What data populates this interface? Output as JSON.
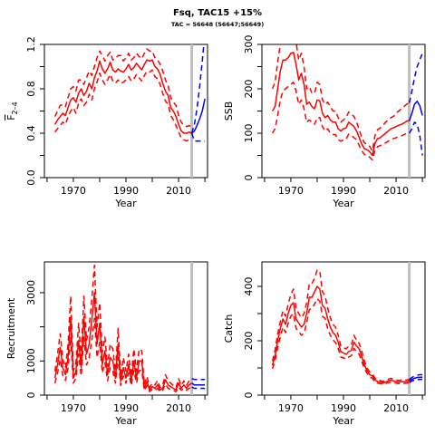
{
  "figure": {
    "title": "Fsq, TAC15 +15%",
    "subtitle": "TAC = 56648 (56647;56649)"
  },
  "chart_data": [
    {
      "type": "line",
      "ylabel_main": "F",
      "ylabel_sub": "2–4",
      "xlabel": "Year",
      "xlim": [
        1959,
        2021
      ],
      "ylim": [
        0,
        1.2
      ],
      "xticks": [
        1970,
        1990,
        2010
      ],
      "yticks": [
        0.0,
        0.4,
        0.8,
        1.2
      ],
      "yticks_minor": [
        0.2,
        0.6,
        1.0
      ],
      "vline_year": 2015,
      "hist_x": [
        1963,
        1964,
        1965,
        1966,
        1967,
        1968,
        1969,
        1970,
        1971,
        1972,
        1973,
        1974,
        1975,
        1976,
        1977,
        1978,
        1979,
        1980,
        1981,
        1982,
        1983,
        1984,
        1985,
        1986,
        1987,
        1988,
        1989,
        1990,
        1991,
        1992,
        1993,
        1994,
        1995,
        1996,
        1997,
        1998,
        1999,
        2000,
        2001,
        2002,
        2003,
        2004,
        2005,
        2006,
        2007,
        2008,
        2009,
        2010,
        2011,
        2012,
        2013,
        2014,
        2015
      ],
      "hist": [
        0.48,
        0.52,
        0.55,
        0.58,
        0.56,
        0.63,
        0.7,
        0.72,
        0.68,
        0.76,
        0.8,
        0.74,
        0.78,
        0.85,
        0.8,
        0.9,
        0.96,
        1.05,
        0.98,
        0.94,
        0.98,
        1.04,
        0.97,
        0.95,
        0.98,
        0.96,
        0.95,
        0.98,
        1.02,
        0.97,
        0.99,
        1.03,
        1.0,
        0.97,
        1.02,
        1.06,
        1.05,
        1.06,
        1.0,
        0.98,
        0.93,
        0.85,
        0.78,
        0.74,
        0.63,
        0.6,
        0.55,
        0.48,
        0.42,
        0.4,
        0.4,
        0.41,
        0.4
      ],
      "hist_upper": [
        0.55,
        0.6,
        0.65,
        0.66,
        0.64,
        0.72,
        0.8,
        0.82,
        0.78,
        0.88,
        0.88,
        0.84,
        0.9,
        0.96,
        0.92,
        1.0,
        1.08,
        1.14,
        1.1,
        1.05,
        1.1,
        1.13,
        1.06,
        1.07,
        1.1,
        1.1,
        1.05,
        1.08,
        1.12,
        1.06,
        1.08,
        1.12,
        1.09,
        1.07,
        1.12,
        1.16,
        1.14,
        1.14,
        1.08,
        1.06,
        1.02,
        0.96,
        0.88,
        0.83,
        0.72,
        0.68,
        0.65,
        0.56,
        0.5,
        0.47,
        0.46,
        0.47,
        0.45
      ],
      "hist_lower": [
        0.41,
        0.44,
        0.47,
        0.5,
        0.48,
        0.55,
        0.6,
        0.63,
        0.58,
        0.67,
        0.71,
        0.65,
        0.68,
        0.75,
        0.7,
        0.8,
        0.86,
        0.94,
        0.88,
        0.84,
        0.88,
        0.93,
        0.87,
        0.85,
        0.88,
        0.85,
        0.86,
        0.88,
        0.91,
        0.87,
        0.89,
        0.93,
        0.9,
        0.87,
        0.92,
        0.96,
        0.95,
        0.97,
        0.91,
        0.89,
        0.84,
        0.76,
        0.69,
        0.66,
        0.56,
        0.52,
        0.47,
        0.41,
        0.36,
        0.34,
        0.33,
        0.34,
        0.34
      ],
      "proj_x": [
        2015,
        2016,
        2017,
        2018,
        2019,
        2020
      ],
      "proj": [
        0.4,
        0.42,
        0.47,
        0.53,
        0.6,
        0.71
      ],
      "proj_upper": [
        0.4,
        0.48,
        0.62,
        0.82,
        1.05,
        1.3
      ],
      "proj_lower": [
        0.4,
        0.33,
        0.33,
        0.33,
        0.33,
        0.33
      ]
    },
    {
      "type": "line",
      "ylabel_main": "SSB",
      "xlabel": "Year",
      "xlim": [
        1959,
        2021
      ],
      "ylim": [
        0,
        300
      ],
      "xticks": [
        1970,
        1990,
        2010
      ],
      "yticks": [
        0,
        100,
        200,
        300
      ],
      "yticks_minor": [
        50,
        150,
        250,
        350
      ],
      "vline_year": 2015,
      "hist_x": [
        1963,
        1964,
        1965,
        1966,
        1967,
        1968,
        1969,
        1970,
        1971,
        1972,
        1973,
        1974,
        1975,
        1976,
        1977,
        1978,
        1979,
        1980,
        1981,
        1982,
        1983,
        1984,
        1985,
        1986,
        1987,
        1988,
        1989,
        1990,
        1991,
        1992,
        1993,
        1994,
        1995,
        1996,
        1997,
        1998,
        1999,
        2000,
        2001,
        2002,
        2003,
        2004,
        2005,
        2006,
        2007,
        2008,
        2009,
        2010,
        2011,
        2012,
        2013,
        2014,
        2015
      ],
      "hist": [
        150,
        160,
        200,
        240,
        265,
        265,
        270,
        280,
        282,
        255,
        220,
        235,
        210,
        165,
        170,
        160,
        155,
        175,
        173,
        145,
        135,
        140,
        130,
        125,
        125,
        110,
        105,
        110,
        112,
        125,
        120,
        115,
        105,
        90,
        75,
        65,
        63,
        58,
        50,
        78,
        88,
        90,
        95,
        100,
        105,
        110,
        112,
        115,
        118,
        120,
        123,
        127,
        128
      ],
      "hist_upper": [
        200,
        215,
        260,
        300,
        325,
        320,
        325,
        335,
        340,
        305,
        265,
        280,
        250,
        200,
        205,
        190,
        190,
        215,
        210,
        175,
        165,
        170,
        160,
        150,
        150,
        135,
        125,
        130,
        135,
        148,
        142,
        138,
        125,
        108,
        90,
        78,
        76,
        70,
        60,
        95,
        108,
        112,
        118,
        125,
        130,
        135,
        138,
        145,
        150,
        155,
        160,
        165,
        168
      ],
      "hist_lower": [
        100,
        110,
        140,
        175,
        195,
        200,
        205,
        210,
        215,
        195,
        165,
        175,
        155,
        125,
        130,
        125,
        120,
        135,
        135,
        115,
        105,
        110,
        100,
        97,
        97,
        85,
        82,
        85,
        87,
        98,
        95,
        90,
        85,
        72,
        60,
        52,
        50,
        46,
        40,
        62,
        70,
        72,
        75,
        78,
        82,
        85,
        88,
        90,
        92,
        94,
        97,
        100,
        100
      ],
      "proj_x": [
        2015,
        2016,
        2017,
        2018,
        2019,
        2020
      ],
      "proj": [
        128,
        145,
        165,
        172,
        162,
        140
      ],
      "proj_upper": [
        168,
        195,
        225,
        250,
        265,
        280
      ],
      "proj_lower": [
        100,
        110,
        125,
        120,
        95,
        50
      ]
    },
    {
      "type": "line",
      "ylabel_main": "Recruitment",
      "xlabel": "Year",
      "xlim": [
        1959,
        2021
      ],
      "ylim": [
        0,
        3900
      ],
      "xticks": [
        1970,
        1990,
        2010
      ],
      "yticks": [
        0,
        1000,
        3000
      ],
      "yticks_minor": [
        2000
      ],
      "vline_year": 2015,
      "hist_x": [
        1963,
        1964,
        1965,
        1966,
        1967,
        1968,
        1969,
        1970,
        1971,
        1972,
        1973,
        1974,
        1975,
        1976,
        1977,
        1978,
        1979,
        1980,
        1981,
        1982,
        1983,
        1984,
        1985,
        1986,
        1987,
        1988,
        1989,
        1990,
        1991,
        1992,
        1993,
        1994,
        1995,
        1996,
        1997,
        1998,
        1999,
        2000,
        2001,
        2002,
        2003,
        2004,
        2005,
        2006,
        2007,
        2008,
        2009,
        2010,
        2011,
        2012,
        2013,
        2014,
        2015
      ],
      "hist": [
        500,
        900,
        1400,
        800,
        600,
        1100,
        2300,
        500,
        700,
        1600,
        800,
        2300,
        1200,
        1500,
        2200,
        3000,
        1500,
        2100,
        900,
        1300,
        600,
        1100,
        1000,
        500,
        1500,
        400,
        800,
        500,
        900,
        400,
        1000,
        500,
        1000,
        1000,
        200,
        400,
        150,
        250,
        200,
        300,
        150,
        200,
        450,
        300,
        250,
        200,
        150,
        350,
        200,
        300,
        200,
        300,
        350
      ],
      "hist_upper": [
        700,
        1200,
        1800,
        1050,
        800,
        1500,
        2900,
        700,
        950,
        2100,
        1100,
        2900,
        1600,
        2000,
        2800,
        3800,
        2000,
        2700,
        1250,
        1700,
        850,
        1500,
        1350,
        700,
        1950,
        550,
        1100,
        700,
        1200,
        550,
        1350,
        700,
        1350,
        1300,
        300,
        550,
        220,
        350,
        300,
        430,
        220,
        300,
        600,
        420,
        350,
        280,
        220,
        480,
        280,
        420,
        280,
        420,
        480
      ],
      "hist_lower": [
        350,
        650,
        1050,
        580,
        430,
        800,
        1700,
        350,
        500,
        1200,
        560,
        1700,
        880,
        1100,
        1600,
        2250,
        1100,
        1550,
        650,
        950,
        420,
        800,
        700,
        350,
        1100,
        280,
        560,
        350,
        650,
        280,
        720,
        350,
        720,
        720,
        140,
        280,
        100,
        170,
        140,
        200,
        100,
        140,
        320,
        200,
        170,
        140,
        100,
        240,
        140,
        200,
        140,
        200,
        240
      ],
      "proj_x": [
        2015,
        2016,
        2017,
        2018,
        2019,
        2020
      ],
      "proj": [
        350,
        300,
        300,
        300,
        300,
        300
      ],
      "proj_upper": [
        480,
        460,
        460,
        460,
        460,
        460
      ],
      "proj_lower": [
        240,
        200,
        200,
        200,
        200,
        200
      ]
    },
    {
      "type": "line",
      "ylabel_main": "Catch",
      "xlabel": "Year",
      "xlim": [
        1959,
        2021
      ],
      "ylim": [
        0,
        490
      ],
      "xticks": [
        1970,
        1990,
        2010
      ],
      "yticks": [
        0,
        200,
        400
      ],
      "yticks_minor": [
        100,
        300
      ],
      "vline_year": 2015,
      "hist_x": [
        1963,
        1964,
        1965,
        1966,
        1967,
        1968,
        1969,
        1970,
        1971,
        1972,
        1973,
        1974,
        1975,
        1976,
        1977,
        1978,
        1979,
        1980,
        1981,
        1982,
        1983,
        1984,
        1985,
        1986,
        1987,
        1988,
        1989,
        1990,
        1991,
        1992,
        1993,
        1994,
        1995,
        1996,
        1997,
        1998,
        1999,
        2000,
        2001,
        2002,
        2003,
        2004,
        2005,
        2006,
        2007,
        2008,
        2009,
        2010,
        2011,
        2012,
        2013,
        2014,
        2015
      ],
      "hist": [
        110,
        145,
        200,
        245,
        280,
        260,
        300,
        330,
        340,
        280,
        265,
        250,
        260,
        300,
        360,
        360,
        380,
        400,
        390,
        330,
        320,
        280,
        250,
        230,
        220,
        195,
        160,
        155,
        150,
        160,
        165,
        195,
        180,
        170,
        140,
        110,
        90,
        75,
        70,
        55,
        50,
        48,
        45,
        48,
        52,
        55,
        52,
        50,
        48,
        50,
        49,
        50,
        52
      ],
      "hist_upper": [
        125,
        165,
        225,
        270,
        310,
        290,
        335,
        370,
        390,
        320,
        300,
        285,
        300,
        340,
        410,
        410,
        430,
        460,
        455,
        380,
        365,
        320,
        285,
        260,
        250,
        220,
        180,
        175,
        170,
        180,
        185,
        220,
        200,
        190,
        160,
        125,
        100,
        85,
        78,
        62,
        56,
        54,
        50,
        54,
        58,
        62,
        58,
        56,
        54,
        56,
        55,
        56,
        58
      ],
      "hist_lower": [
        97,
        125,
        175,
        215,
        250,
        230,
        265,
        290,
        300,
        245,
        235,
        220,
        228,
        265,
        315,
        318,
        335,
        355,
        345,
        290,
        282,
        245,
        220,
        203,
        193,
        172,
        140,
        137,
        132,
        140,
        145,
        172,
        160,
        150,
        123,
        97,
        80,
        66,
        62,
        48,
        44,
        42,
        40,
        42,
        46,
        48,
        46,
        44,
        42,
        44,
        43,
        44,
        46
      ],
      "proj_x": [
        2015,
        2016,
        2017,
        2018,
        2019,
        2020
      ],
      "proj": [
        52,
        58,
        62,
        65,
        66,
        66
      ],
      "proj_upper": [
        58,
        65,
        70,
        73,
        75,
        75
      ],
      "proj_lower": [
        46,
        52,
        55,
        57,
        58,
        58
      ]
    }
  ]
}
